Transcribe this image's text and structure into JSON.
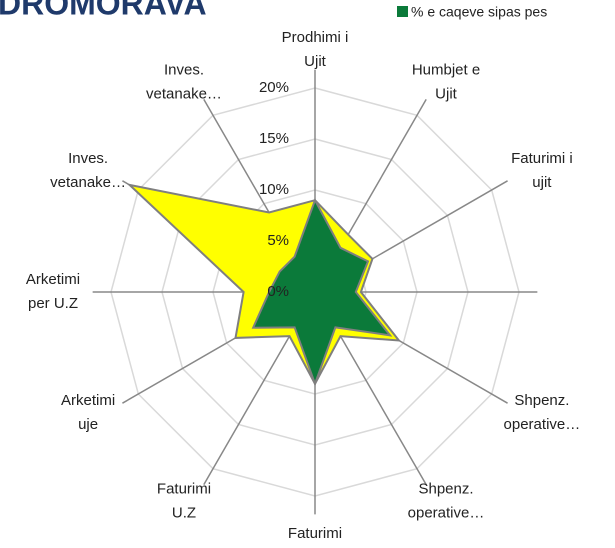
{
  "chart_data": {
    "type": "radar",
    "title": "DROMORAVA",
    "categories": [
      [
        "Prodhimi i",
        "Ujit"
      ],
      [
        "Humbjet e",
        "Ujit"
      ],
      [
        "Faturimi i",
        "ujit"
      ],
      null,
      [
        "Shpenz.",
        "operative…"
      ],
      [
        "Shpenz.",
        "operative…"
      ],
      [
        "Faturimi"
      ],
      [
        "Faturimi",
        "U.Z"
      ],
      [
        "Arketimi",
        "uje"
      ],
      [
        "Arketimi",
        "per U.Z"
      ],
      [
        "Inves.",
        "vetanake…"
      ],
      [
        "Inves.",
        "vetanake…"
      ]
    ],
    "series": [
      {
        "color": "#ffff00",
        "values": [
          9,
          6.5,
          6.5,
          4.5,
          9.5,
          5,
          9,
          5,
          9,
          7,
          21,
          9
        ]
      },
      {
        "name": "% e caqeve sipas pes",
        "color": "#0b7a3a",
        "values": [
          9,
          5,
          6,
          4,
          8.5,
          4,
          9,
          4,
          7,
          4.5,
          4,
          4
        ]
      }
    ],
    "ylim": [
      0,
      20
    ],
    "yticks": [
      {
        "value": 0,
        "label": "0%"
      },
      {
        "value": 5,
        "label": "5%"
      },
      {
        "value": 10,
        "label": "10%"
      },
      {
        "value": 15,
        "label": "15%"
      },
      {
        "value": 20,
        "label": "20%"
      }
    ],
    "grid": true
  }
}
